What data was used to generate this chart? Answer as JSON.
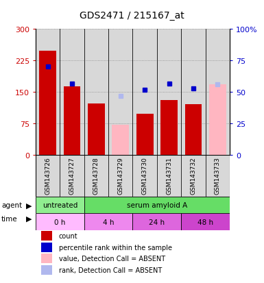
{
  "title": "GDS2471 / 215167_at",
  "samples": [
    "GSM143726",
    "GSM143727",
    "GSM143728",
    "GSM143729",
    "GSM143730",
    "GSM143731",
    "GSM143732",
    "GSM143733"
  ],
  "count_values": [
    248,
    163,
    122,
    null,
    98,
    130,
    120,
    null
  ],
  "count_absent_values": [
    null,
    null,
    null,
    72,
    null,
    null,
    null,
    168
  ],
  "percentile_rank_values": [
    210,
    170,
    null,
    null,
    155,
    170,
    158,
    null
  ],
  "rank_absent_values": [
    null,
    null,
    null,
    140,
    null,
    null,
    null,
    168
  ],
  "ylim_left": [
    0,
    300
  ],
  "ylim_right": [
    0,
    100
  ],
  "yticks_left": [
    0,
    75,
    150,
    225,
    300
  ],
  "yticks_right": [
    0,
    25,
    50,
    75,
    100
  ],
  "ytick_labels_left": [
    "0",
    "75",
    "150",
    "225",
    "300"
  ],
  "ytick_labels_right": [
    "0",
    "25",
    "50",
    "75",
    "100%"
  ],
  "count_color": "#cc0000",
  "count_absent_color": "#ffb6c1",
  "rank_color": "#0000cc",
  "rank_absent_color": "#b0b8ee",
  "agent_colors_map": {
    "untreated": "#90ee90",
    "serum amyloid A": "#66dd66"
  },
  "agent_labels": [
    {
      "label": "untreated",
      "start": 0,
      "end": 2
    },
    {
      "label": "serum amyloid A",
      "start": 2,
      "end": 8
    }
  ],
  "time_labels": [
    {
      "label": "0 h",
      "start": 0,
      "end": 2
    },
    {
      "label": "4 h",
      "start": 2,
      "end": 4
    },
    {
      "label": "24 h",
      "start": 4,
      "end": 6
    },
    {
      "label": "48 h",
      "start": 6,
      "end": 8
    }
  ],
  "time_colors": [
    "#ffbbff",
    "#ee88ee",
    "#dd66dd",
    "#cc44cc"
  ],
  "bar_width": 0.7,
  "bg_color": "#d8d8d8",
  "legend_items": [
    {
      "label": "count",
      "color": "#cc0000"
    },
    {
      "label": "percentile rank within the sample",
      "color": "#0000cc"
    },
    {
      "label": "value, Detection Call = ABSENT",
      "color": "#ffb6c1"
    },
    {
      "label": "rank, Detection Call = ABSENT",
      "color": "#b0b8ee"
    }
  ]
}
